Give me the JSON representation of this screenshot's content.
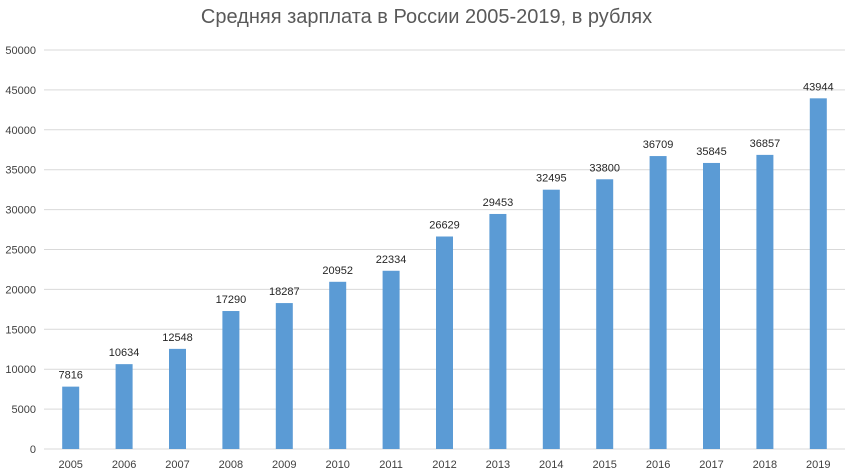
{
  "chart_data": {
    "type": "bar",
    "title": "Средняя зарплата в России 2005-2019, в рублях",
    "xlabel": "",
    "ylabel": "",
    "categories": [
      "2005",
      "2006",
      "2007",
      "2008",
      "2009",
      "2010",
      "2011",
      "2012",
      "2013",
      "2014",
      "2015",
      "2016",
      "2017",
      "2018",
      "2019"
    ],
    "values": [
      7816,
      10634,
      12548,
      17290,
      18287,
      20952,
      22334,
      26629,
      29453,
      32495,
      33800,
      36709,
      35845,
      36857,
      43944
    ],
    "data_labels": [
      "7816",
      "10634",
      "12548",
      "17290",
      "18287",
      "20952",
      "22334",
      "26629",
      "29453",
      "32495",
      "33800",
      "36709",
      "35845",
      "36857",
      "43944"
    ],
    "ylim": [
      0,
      50000
    ],
    "yticks": [
      0,
      5000,
      10000,
      15000,
      20000,
      25000,
      30000,
      35000,
      40000,
      45000,
      50000
    ],
    "ytick_labels": [
      "0",
      "5000",
      "10000",
      "15000",
      "20000",
      "25000",
      "30000",
      "35000",
      "40000",
      "45000",
      "50000"
    ],
    "grid": true,
    "legend": "none",
    "bar_color": "#5B9BD5",
    "grid_color": "#D9D9D9"
  }
}
